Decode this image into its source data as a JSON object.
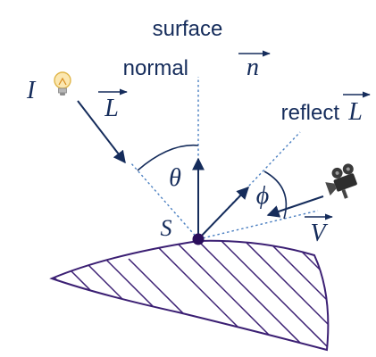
{
  "labels": {
    "surface_line1": "surface",
    "surface_line2": "normal",
    "normal_vec": "n",
    "light_intensity": "I",
    "light_vec": "L",
    "reflect_word": "reflect",
    "reflect_vec": "L",
    "view_vec": "V",
    "theta": "θ",
    "phi": "ϕ",
    "surface_point": "S"
  },
  "icons": {
    "light": "light-bulb-icon",
    "camera": "video-camera-icon"
  },
  "colors": {
    "ink": "#152c5b",
    "guide": "#4a7fc1",
    "surface_stroke": "#3b1f73",
    "point": "#2a0e5c",
    "hatch": "#3b1f73"
  }
}
